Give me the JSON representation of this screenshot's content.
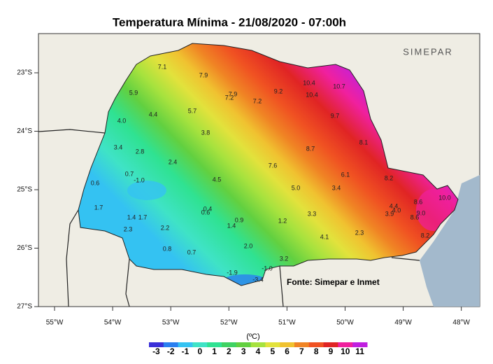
{
  "header": {
    "title": "Temperatura Mínima - 21/08/2020 - 07:00h",
    "logo": "SIMEPAR"
  },
  "map": {
    "lat_ticks": [
      {
        "value": -23,
        "label": "23°S"
      },
      {
        "value": -24,
        "label": "24°S"
      },
      {
        "value": -25,
        "label": "25°S"
      },
      {
        "value": -26,
        "label": "26°S"
      },
      {
        "value": -27,
        "label": "27°S"
      }
    ],
    "lon_ticks": [
      {
        "value": -55,
        "label": "55°W"
      },
      {
        "value": -54,
        "label": "54°W"
      },
      {
        "value": -53,
        "label": "53°W"
      },
      {
        "value": -52,
        "label": "52°W"
      },
      {
        "value": -51,
        "label": "51°W"
      },
      {
        "value": -50,
        "label": "50°W"
      },
      {
        "value": -49,
        "label": "49°W"
      },
      {
        "value": -48,
        "label": "48°W"
      }
    ],
    "stations": [
      "7.1",
      "7.9",
      "7.9",
      "7.2",
      "7.2",
      "9.2",
      "10.4",
      "10.4",
      "10.7",
      "5.9",
      "5.7",
      "4.4",
      "4.0",
      "9.7",
      "3.8",
      "8.7",
      "8.1",
      "3.4",
      "2.8",
      "2.4",
      "7.6",
      "6.1",
      "0.7",
      "-1.0",
      "0.6",
      "4.5",
      "8.2",
      "5.0",
      "3.4",
      "8.6",
      "10.0",
      "1.7",
      "4.4",
      "4.0",
      "9.0",
      "0.4",
      "0.6",
      "3.3",
      "3.9",
      "8.6",
      "1.4",
      "1.7",
      "0.9",
      "1.2",
      "1.4",
      "2.3",
      "2.2",
      "2.3",
      "4.1",
      "8.2",
      "2.0",
      "0.8",
      "0.7",
      "3.2",
      "-1.0",
      "-1.9",
      "-3.4"
    ],
    "source": "Fonte: Simepar e Inmet"
  },
  "colorbar": {
    "unit": "(ºC)",
    "ticks": [
      -3,
      -2,
      -1,
      0,
      1,
      2,
      3,
      4,
      5,
      6,
      7,
      8,
      9,
      10,
      11
    ],
    "colors": [
      "#3a2fd8",
      "#2a7ff0",
      "#34c2f2",
      "#3fe3c6",
      "#2fe292",
      "#3fd262",
      "#62d040",
      "#a6e23e",
      "#e2e23c",
      "#f0c230",
      "#f08424",
      "#f05222",
      "#e02424",
      "#f0209e",
      "#c020e0"
    ]
  }
}
